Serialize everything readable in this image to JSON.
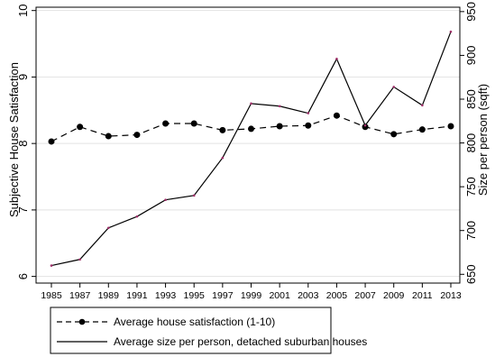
{
  "chart_data": {
    "type": "line",
    "x": [
      1985,
      1987,
      1989,
      1991,
      1993,
      1995,
      1997,
      1999,
      2001,
      2003,
      2005,
      2007,
      2009,
      2011,
      2013
    ],
    "x_ticks": [
      "1985",
      "1987",
      "1989",
      "1991",
      "1993",
      "1995",
      "1997",
      "1999",
      "2001",
      "2003",
      "2005",
      "2007",
      "2009",
      "2011",
      "2013"
    ],
    "ylabel_left": "Subjective House Satisfaction",
    "ylabel_right": "Size per person (sqft)",
    "ylim_left": [
      5.9,
      10.05
    ],
    "ylim_right": [
      640,
      955
    ],
    "yticks_left": [
      "6",
      "7",
      "8",
      "9",
      "10"
    ],
    "yticks_right": [
      "650",
      "700",
      "750",
      "800",
      "850",
      "900",
      "950"
    ],
    "grid": "horizontal",
    "legend_position": "bottom",
    "series": [
      {
        "name": "Average house satisfaction (1-10)",
        "axis": "left",
        "style": "dashed",
        "marker": "circle",
        "color": "#000000",
        "values": [
          8.03,
          8.25,
          8.11,
          8.13,
          8.3,
          8.3,
          8.2,
          8.22,
          8.26,
          8.27,
          8.42,
          8.25,
          8.14,
          8.21,
          8.26
        ]
      },
      {
        "name": "Average size per person, detached suburban houses",
        "axis": "right",
        "style": "solid",
        "marker": "tiny",
        "color": "#000000",
        "marker_color": "#a0306a",
        "values": [
          660,
          667,
          703,
          716,
          735,
          740,
          783,
          845,
          842,
          834,
          896,
          820,
          864,
          843,
          927
        ]
      }
    ]
  }
}
